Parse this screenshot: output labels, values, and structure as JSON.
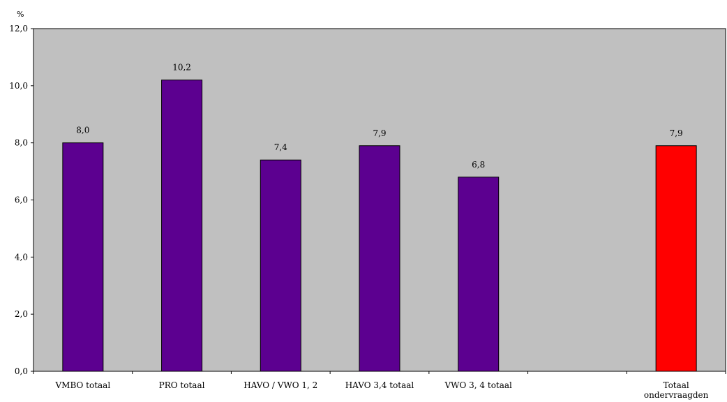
{
  "chart_data": {
    "type": "bar",
    "ylabel": "%",
    "ylim": [
      0,
      12
    ],
    "yticks": [
      0,
      2,
      4,
      6,
      8,
      10,
      12
    ],
    "ytick_labels": [
      "0,0",
      "2,0",
      "4,0",
      "6,0",
      "8,0",
      "10,0",
      "12,0"
    ],
    "grid": false,
    "categories": [
      "VMBO totaal",
      "PRO totaal",
      "HAVO / VWO  1, 2",
      "HAVO 3,4 totaal",
      "VWO 3, 4 totaal",
      "",
      "Totaal ondervraagden"
    ],
    "category_lines": [
      [
        "VMBO totaal"
      ],
      [
        "PRO totaal"
      ],
      [
        "HAVO / VWO  1, 2"
      ],
      [
        "HAVO 3,4 totaal"
      ],
      [
        "VWO 3, 4 totaal"
      ],
      [],
      [
        "Totaal",
        "ondervraagden"
      ]
    ],
    "values": [
      8.0,
      10.2,
      7.4,
      7.9,
      6.8,
      null,
      7.9
    ],
    "value_labels": [
      "8,0",
      "10,2",
      "7,4",
      "7,9",
      "6,8",
      "",
      "7,9"
    ],
    "bar_colors": [
      "#5c0090",
      "#5c0090",
      "#5c0090",
      "#5c0090",
      "#5c0090",
      "#5c0090",
      "#ff0000"
    ],
    "plot_background": "#c0c0c0"
  }
}
